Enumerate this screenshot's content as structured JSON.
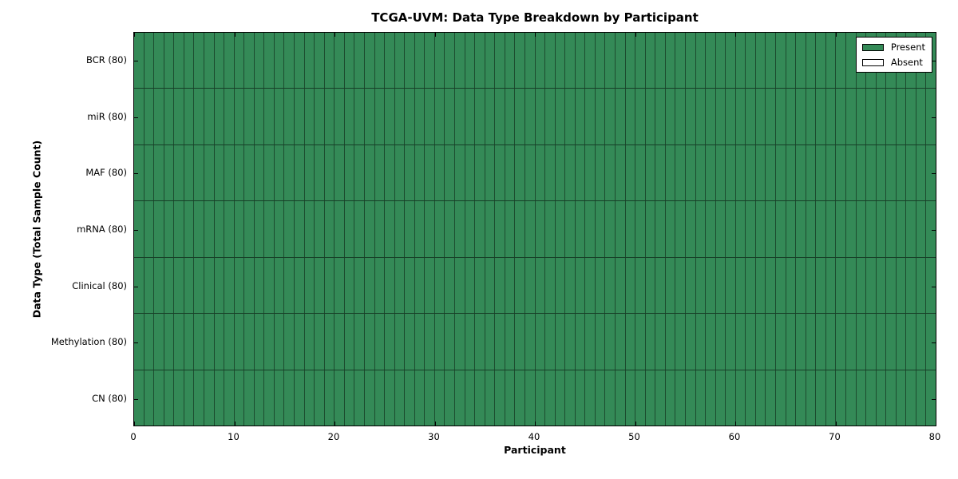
{
  "chart_data": {
    "type": "heatmap",
    "title": "TCGA-UVM: Data Type Breakdown by Participant",
    "xlabel": "Participant",
    "ylabel": "Data Type (Total Sample Count)",
    "x_range": [
      0,
      80
    ],
    "x_ticks": [
      0,
      10,
      20,
      30,
      40,
      50,
      60,
      70,
      80
    ],
    "n_participants": 80,
    "rows": [
      {
        "label": "BCR (80)",
        "present_count": 80,
        "absent_count": 0
      },
      {
        "label": "miR (80)",
        "present_count": 80,
        "absent_count": 0
      },
      {
        "label": "MAF (80)",
        "present_count": 80,
        "absent_count": 0
      },
      {
        "label": "mRNA (80)",
        "present_count": 80,
        "absent_count": 0
      },
      {
        "label": "Clinical (80)",
        "present_count": 80,
        "absent_count": 0
      },
      {
        "label": "Methylation (80)",
        "present_count": 80,
        "absent_count": 0
      },
      {
        "label": "CN (80)",
        "present_count": 80,
        "absent_count": 0
      }
    ],
    "legend": [
      {
        "label": "Present",
        "color": "#348a57"
      },
      {
        "label": "Absent",
        "color": "#ffffff"
      }
    ],
    "legend_position": "upper right",
    "colors": {
      "present": "#348a57",
      "absent": "#ffffff",
      "cell_border": "rgba(0,0,0,0.45)",
      "frame": "#000000",
      "background": "#ffffff"
    },
    "grid": "cell-borders",
    "tick_direction": "in"
  }
}
